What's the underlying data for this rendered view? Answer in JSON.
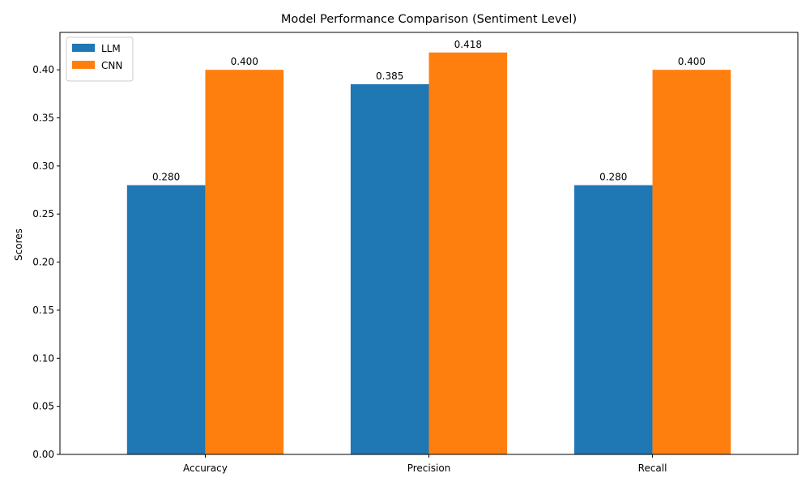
{
  "chart_data": {
    "type": "bar",
    "title": "Model Performance Comparison (Sentiment Level)",
    "xlabel": "",
    "ylabel": "Scores",
    "categories": [
      "Accuracy",
      "Precision",
      "Recall"
    ],
    "series": [
      {
        "name": "LLM",
        "color": "#1f77b4",
        "values": [
          0.28,
          0.385,
          0.28
        ],
        "labels": [
          "0.280",
          "0.385",
          "0.280"
        ]
      },
      {
        "name": "CNN",
        "color": "#ff7f0e",
        "values": [
          0.4,
          0.418,
          0.4
        ],
        "labels": [
          "0.400",
          "0.418",
          "0.400"
        ]
      }
    ],
    "ylim": [
      0,
      0.4389
    ],
    "yticks": [
      "0.00",
      "0.05",
      "0.10",
      "0.15",
      "0.20",
      "0.25",
      "0.30",
      "0.35",
      "0.40"
    ],
    "legend": "top-left",
    "grid": false
  }
}
